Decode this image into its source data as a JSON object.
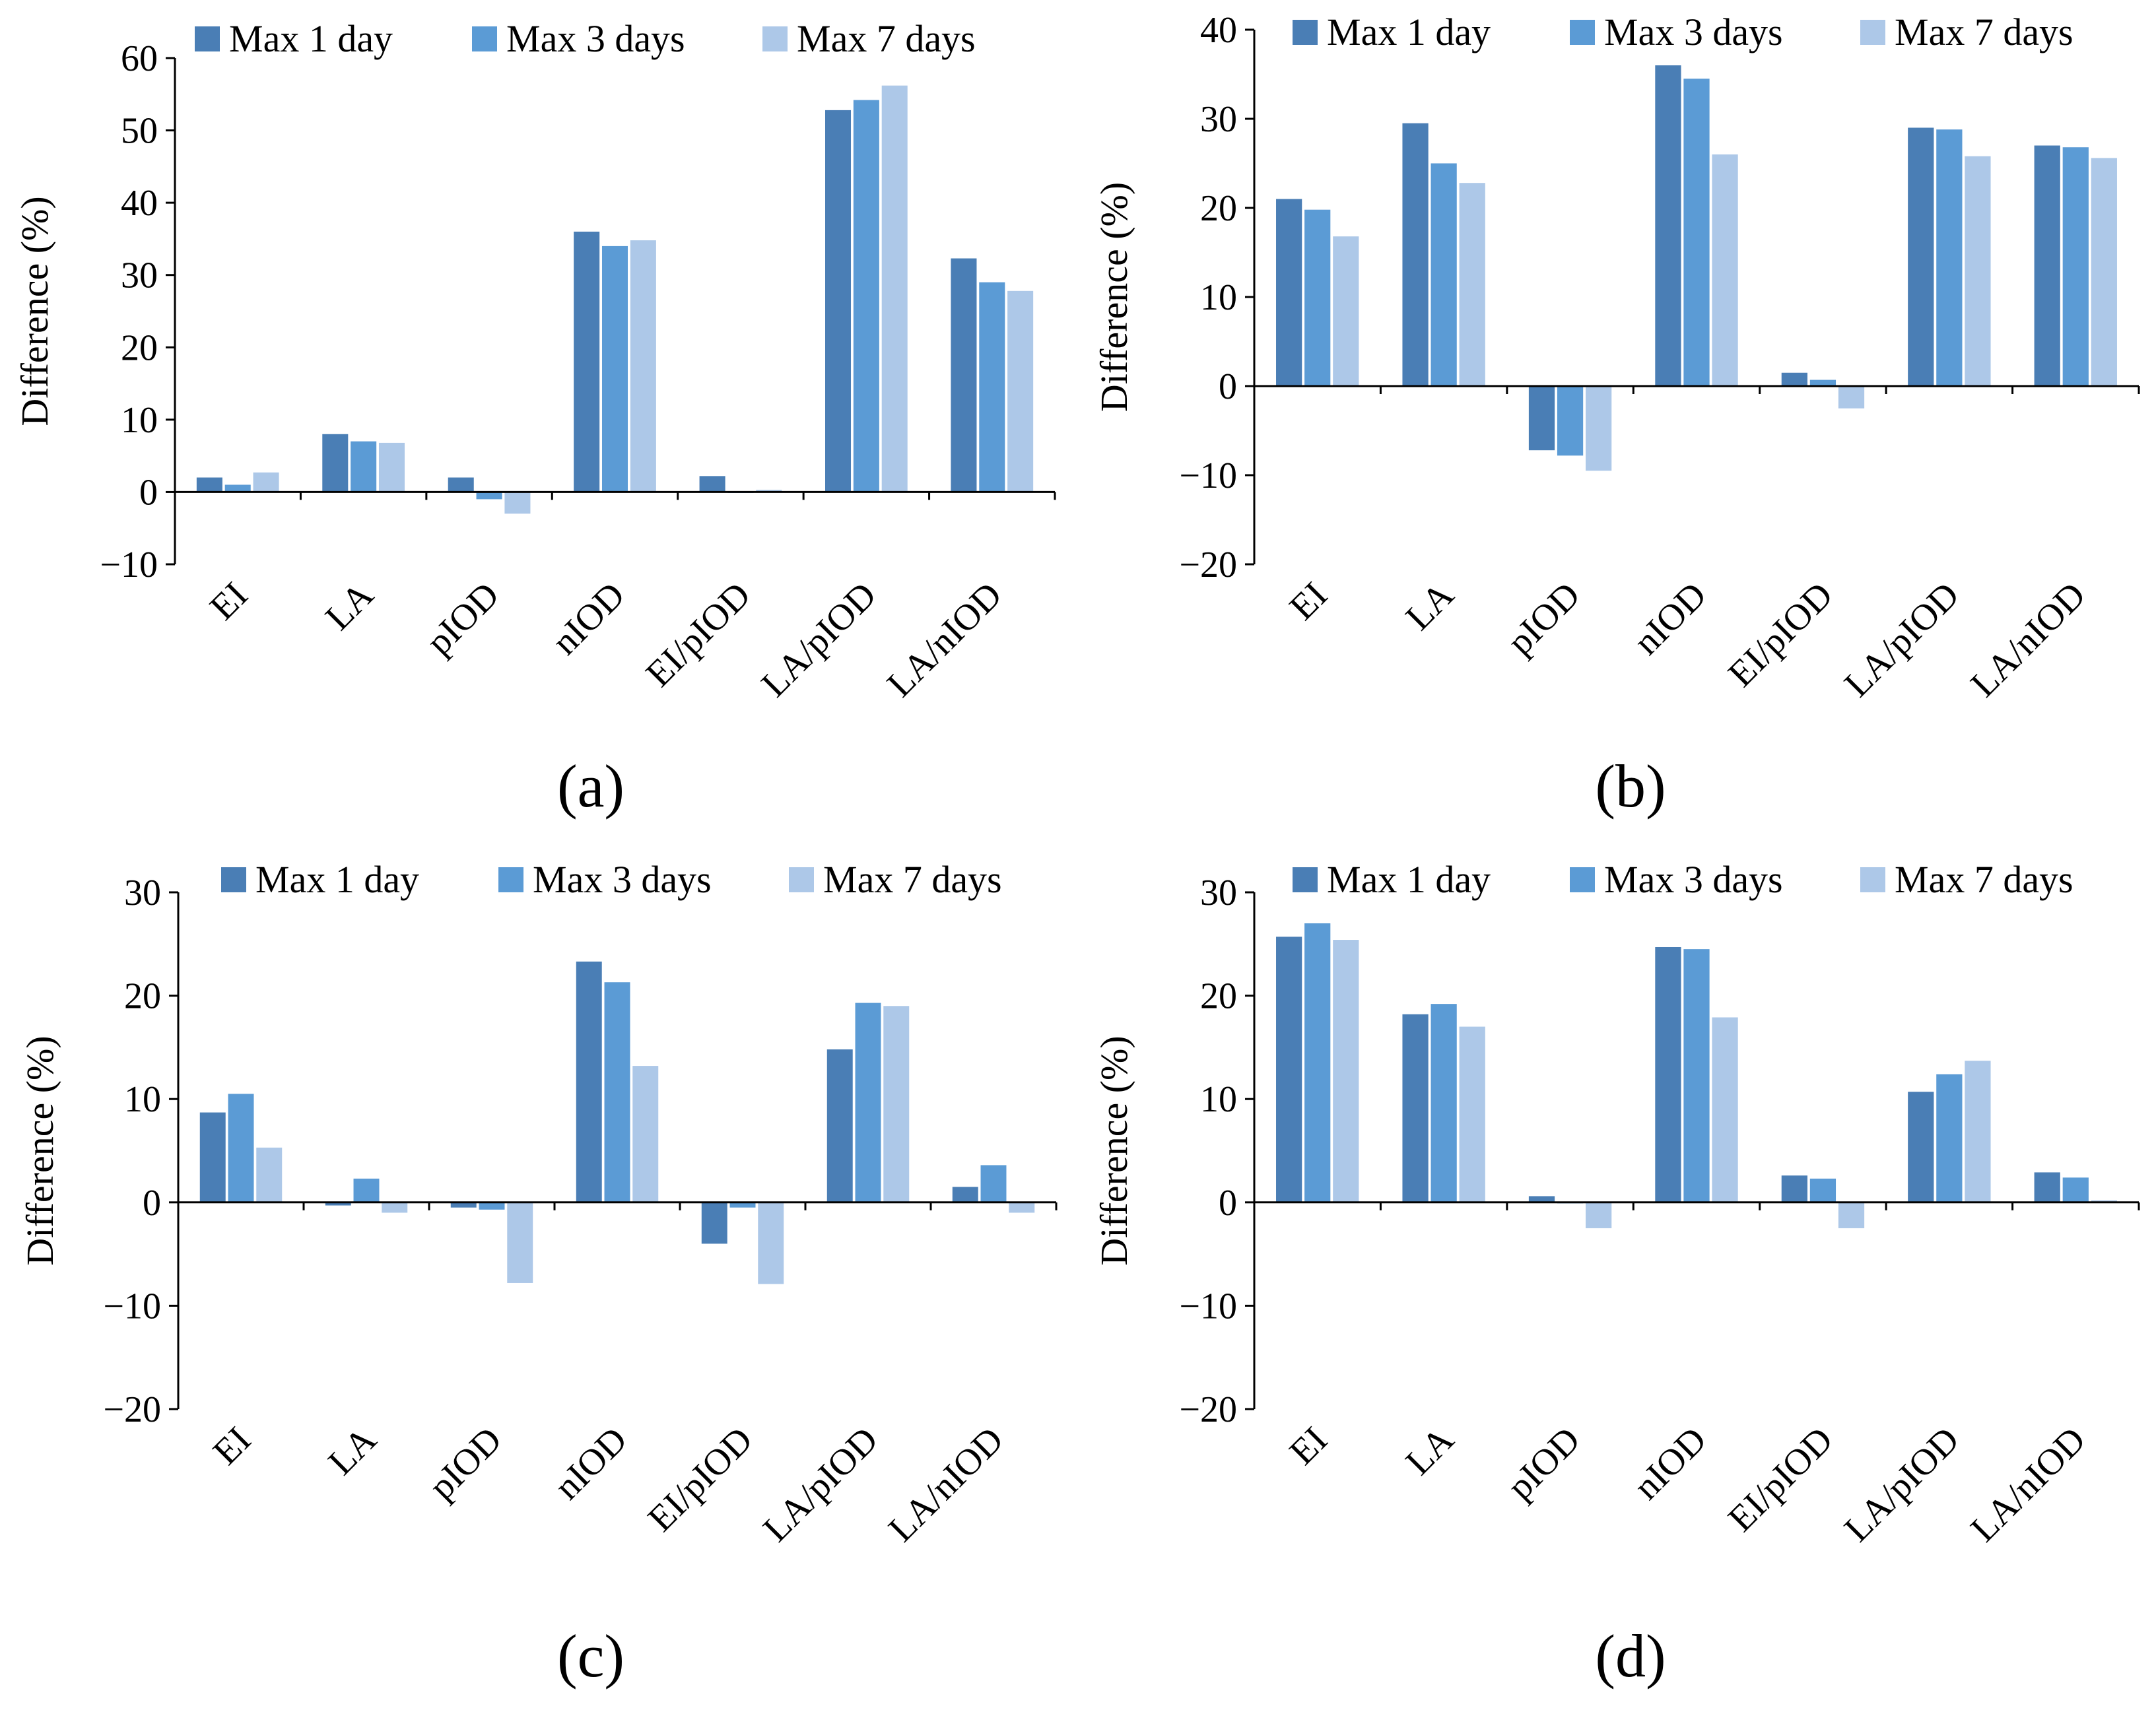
{
  "colors": {
    "max_1_day": "#4a7eb5",
    "max_3_days": "#5b9bd5",
    "max_7_days": "#adc8e8",
    "axis": "#000000"
  },
  "chart_data": [
    {
      "type": "bar",
      "panel": "(a)",
      "caption": "(a)",
      "ylabel": "Difference (%)",
      "ylim": [
        -10,
        60
      ],
      "yticks": [
        -10,
        0,
        10,
        20,
        30,
        40,
        50,
        60
      ],
      "ytick_labels": [
        "−10",
        "0",
        "10",
        "20",
        "30",
        "40",
        "50",
        "60"
      ],
      "categories": [
        "EI",
        "LA",
        "pIOD",
        "nIOD",
        "EI/pIOD",
        "LA/pIOD",
        "LA/nIOD"
      ],
      "legend": "top",
      "series": [
        {
          "name": "Max 1 day",
          "values": [
            2.0,
            8.0,
            2.0,
            36.0,
            2.2,
            52.8,
            32.3
          ]
        },
        {
          "name": "Max 3 days",
          "values": [
            1.0,
            7.0,
            -1.0,
            34.0,
            0.0,
            54.2,
            29.0
          ]
        },
        {
          "name": "Max 7 days",
          "values": [
            2.7,
            6.8,
            -3.0,
            34.8,
            0.3,
            56.2,
            27.8
          ]
        }
      ]
    },
    {
      "type": "bar",
      "panel": "(b)",
      "caption": "(b)",
      "ylabel": "Difference (%)",
      "ylim": [
        -20,
        40
      ],
      "yticks": [
        -20,
        -10,
        0,
        10,
        20,
        30,
        40
      ],
      "ytick_labels": [
        "−20",
        "−10",
        "0",
        "10",
        "20",
        "30",
        "40"
      ],
      "categories": [
        "EI",
        "LA",
        "pIOD",
        "nIOD",
        "EI/pIOD",
        "LA/pIOD",
        "LA/nIOD"
      ],
      "legend": "top",
      "series": [
        {
          "name": "Max 1 day",
          "values": [
            21.0,
            29.5,
            -7.2,
            36.0,
            1.5,
            29.0,
            27.0
          ]
        },
        {
          "name": "Max 3 days",
          "values": [
            19.8,
            25.0,
            -7.8,
            34.5,
            0.7,
            28.8,
            26.8
          ]
        },
        {
          "name": "Max 7 days",
          "values": [
            16.8,
            22.8,
            -9.5,
            26.0,
            -2.5,
            25.8,
            25.6
          ]
        }
      ]
    },
    {
      "type": "bar",
      "panel": "(c)",
      "caption": "(c)",
      "ylabel": "Difference (%)",
      "ylim": [
        -20,
        30
      ],
      "yticks": [
        -20,
        -10,
        0,
        10,
        20,
        30
      ],
      "ytick_labels": [
        "−20",
        "−10",
        "0",
        "10",
        "20",
        "30"
      ],
      "categories": [
        "EI",
        "LA",
        "pIOD",
        "nIOD",
        "EI/pIOD",
        "LA/pIOD",
        "LA/nIOD"
      ],
      "legend": "top",
      "series": [
        {
          "name": "Max 1 day",
          "values": [
            8.7,
            -0.3,
            -0.5,
            23.3,
            -4.0,
            14.8,
            1.5
          ]
        },
        {
          "name": "Max 3 days",
          "values": [
            10.5,
            2.3,
            -0.7,
            21.3,
            -0.5,
            19.3,
            3.6
          ]
        },
        {
          "name": "Max 7 days",
          "values": [
            5.3,
            -1.0,
            -7.8,
            13.2,
            -7.9,
            19.0,
            -1.0
          ]
        }
      ]
    },
    {
      "type": "bar",
      "panel": "(d)",
      "caption": "(d)",
      "ylabel": "Difference (%)",
      "ylim": [
        -20,
        30
      ],
      "yticks": [
        -20,
        -10,
        0,
        10,
        20,
        30
      ],
      "ytick_labels": [
        "−20",
        "−10",
        "0",
        "10",
        "20",
        "30"
      ],
      "categories": [
        "EI",
        "LA",
        "pIOD",
        "nIOD",
        "EI/pIOD",
        "LA/pIOD",
        "LA/nIOD"
      ],
      "legend": "top",
      "series": [
        {
          "name": "Max 1 day",
          "values": [
            25.7,
            18.2,
            0.6,
            24.7,
            2.6,
            10.7,
            2.9
          ]
        },
        {
          "name": "Max 3 days",
          "values": [
            27.0,
            19.2,
            0.0,
            24.5,
            2.3,
            12.4,
            2.4
          ]
        },
        {
          "name": "Max 7 days",
          "values": [
            25.4,
            17.0,
            -2.5,
            17.9,
            -2.5,
            13.7,
            0.2
          ]
        }
      ]
    }
  ]
}
